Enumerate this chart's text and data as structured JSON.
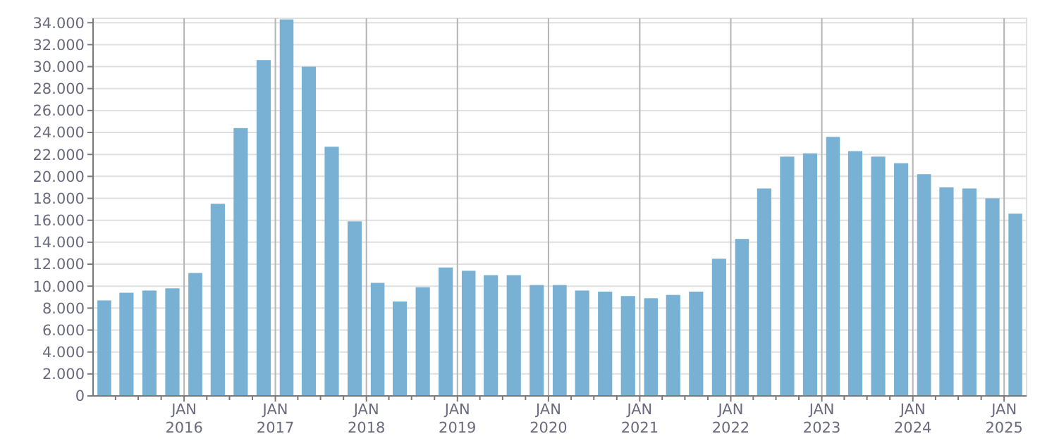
{
  "chart_data": {
    "type": "bar",
    "x": [
      "2015-02-15",
      "2015-05-15",
      "2015-08-15",
      "2015-11-15",
      "2016-02-15",
      "2016-05-15",
      "2016-08-15",
      "2016-11-15",
      "2017-02-15",
      "2017-05-15",
      "2017-08-15",
      "2017-11-15",
      "2018-02-15",
      "2018-05-15",
      "2018-08-15",
      "2018-11-15",
      "2019-02-15",
      "2019-05-15",
      "2019-08-15",
      "2019-11-15",
      "2020-02-15",
      "2020-05-15",
      "2020-08-15",
      "2020-11-15",
      "2021-02-15",
      "2021-05-15",
      "2021-08-15",
      "2021-11-15",
      "2022-02-15",
      "2022-05-15",
      "2022-08-15",
      "2022-11-15",
      "2023-02-15",
      "2023-05-15",
      "2023-08-15",
      "2023-11-15",
      "2024-02-15",
      "2024-05-15",
      "2024-08-15",
      "2024-11-15",
      "2025-02-15"
    ],
    "values": [
      8700,
      9400,
      9600,
      9800,
      11200,
      17500,
      24400,
      30600,
      34300,
      30000,
      22700,
      15900,
      10300,
      8600,
      9900,
      11700,
      11400,
      11000,
      11000,
      10100,
      10100,
      9600,
      9500,
      9100,
      8900,
      9200,
      9500,
      12500,
      14300,
      18900,
      21800,
      22100,
      23600,
      22300,
      21800,
      21200,
      20200,
      19000,
      18900,
      18000,
      16600
    ],
    "color": "#78b1d4",
    "xlim": [
      "2015-01",
      "2025-04"
    ],
    "xticks": [
      {
        "value": "2015-04",
        "label": null
      },
      {
        "value": "2015-07",
        "label": null
      },
      {
        "value": "2015-10",
        "label": null
      },
      {
        "value": "2016-01",
        "label": "JAN\n2016"
      },
      {
        "value": "2016-04",
        "label": null
      },
      {
        "value": "2016-07",
        "label": null
      },
      {
        "value": "2016-10",
        "label": null
      },
      {
        "value": "2017-01",
        "label": "JAN\n2017"
      },
      {
        "value": "2017-04",
        "label": null
      },
      {
        "value": "2017-07",
        "label": null
      },
      {
        "value": "2017-10",
        "label": null
      },
      {
        "value": "2018-01",
        "label": "JAN\n2018"
      },
      {
        "value": "2018-04",
        "label": null
      },
      {
        "value": "2018-07",
        "label": null
      },
      {
        "value": "2018-10",
        "label": null
      },
      {
        "value": "2019-01",
        "label": "JAN\n2019"
      },
      {
        "value": "2019-04",
        "label": null
      },
      {
        "value": "2019-07",
        "label": null
      },
      {
        "value": "2019-10",
        "label": null
      },
      {
        "value": "2020-01",
        "label": "JAN\n2020"
      },
      {
        "value": "2020-04",
        "label": null
      },
      {
        "value": "2020-07",
        "label": null
      },
      {
        "value": "2020-10",
        "label": null
      },
      {
        "value": "2021-01",
        "label": "JAN\n2021"
      },
      {
        "value": "2021-04",
        "label": null
      },
      {
        "value": "2021-07",
        "label": null
      },
      {
        "value": "2021-10",
        "label": null
      },
      {
        "value": "2022-01",
        "label": "JAN\n2022"
      },
      {
        "value": "2022-04",
        "label": null
      },
      {
        "value": "2022-07",
        "label": null
      },
      {
        "value": "2022-10",
        "label": null
      },
      {
        "value": "2023-01",
        "label": "JAN\n2023"
      },
      {
        "value": "2023-04",
        "label": null
      },
      {
        "value": "2023-07",
        "label": null
      },
      {
        "value": "2023-10",
        "label": null
      },
      {
        "value": "2024-01",
        "label": "JAN\n2024"
      },
      {
        "value": "2024-04",
        "label": null
      },
      {
        "value": "2024-07",
        "label": null
      },
      {
        "value": "2024-10",
        "label": null
      },
      {
        "value": "2025-01",
        "label": "JAN\n2025"
      }
    ],
    "ylim": [
      0,
      34400
    ],
    "yticks": [
      0,
      {
        "value": 2000,
        "label": "2.000"
      },
      {
        "value": 4000,
        "label": "4.000"
      },
      {
        "value": 6000,
        "label": "6.000"
      },
      {
        "value": 8000,
        "label": "8.000"
      },
      {
        "value": 10000,
        "label": "10.000"
      },
      {
        "value": 12000,
        "label": "12.000"
      },
      {
        "value": 14000,
        "label": "14.000"
      },
      {
        "value": 16000,
        "label": "16.000"
      },
      {
        "value": 18000,
        "label": "18.000"
      },
      {
        "value": 20000,
        "label": "20.000"
      },
      {
        "value": 22000,
        "label": "22.000"
      },
      {
        "value": 24000,
        "label": "24.000"
      },
      {
        "value": 26000,
        "label": "26.000"
      },
      {
        "value": 28000,
        "label": "28.000"
      },
      {
        "value": 30000,
        "label": "30.000"
      },
      {
        "value": 32000,
        "label": "32.000"
      },
      {
        "value": 34000,
        "label": "34.000"
      }
    ],
    "grid": true
  }
}
